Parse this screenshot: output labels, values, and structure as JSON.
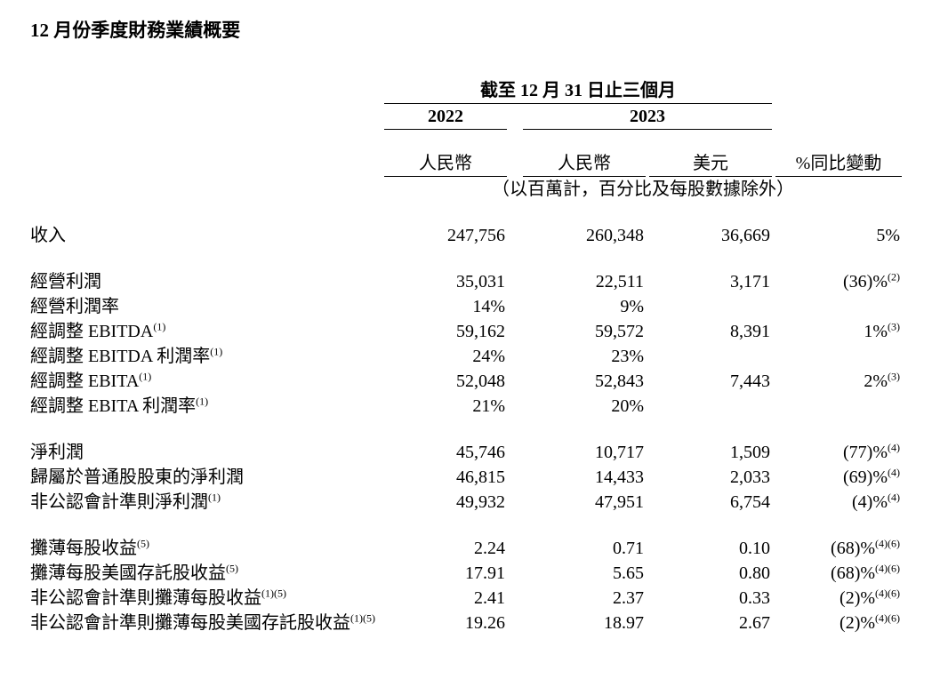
{
  "title": "12 月份季度財務業績概要",
  "header": {
    "period": "截至 12 月 31 日止三個月",
    "year_2022": "2022",
    "year_2023": "2023",
    "ccy_rmb": "人民幣",
    "ccy_usd": "美元",
    "pct_label": "%同比變動",
    "unit_note": "（以百萬計，百分比及每股數據除外）"
  },
  "rows": {
    "revenue": {
      "label": "收入",
      "c1": "247,756",
      "c2": "260,348",
      "c3": "36,669",
      "pct": "5%",
      "fn": ""
    },
    "op_income": {
      "label": "經營利潤",
      "c1": "35,031",
      "c2": "22,511",
      "c3": "3,171",
      "pct": "(36)%",
      "fn": "(2)"
    },
    "op_margin": {
      "label": "經營利潤率",
      "c1": "14%",
      "c2": "9%",
      "c3": "",
      "pct": "",
      "fn": ""
    },
    "adj_ebitda": {
      "label": "經調整 EBITDA",
      "sup": "(1)",
      "c1": "59,162",
      "c2": "59,572",
      "c3": "8,391",
      "pct": "1%",
      "fn": "(3)"
    },
    "adj_ebitda_m": {
      "label": "經調整 EBITDA 利潤率",
      "sup": "(1)",
      "c1": "24%",
      "c2": "23%",
      "c3": "",
      "pct": "",
      "fn": ""
    },
    "adj_ebita": {
      "label": "經調整 EBITA",
      "sup": "(1)",
      "c1": "52,048",
      "c2": "52,843",
      "c3": "7,443",
      "pct": "2%",
      "fn": "(3)"
    },
    "adj_ebita_m": {
      "label": "經調整 EBITA 利潤率",
      "sup": "(1)",
      "c1": "21%",
      "c2": "20%",
      "c3": "",
      "pct": "",
      "fn": ""
    },
    "net_income": {
      "label": "淨利潤",
      "c1": "45,746",
      "c2": "10,717",
      "c3": "1,509",
      "pct": "(77)%",
      "fn": "(4)"
    },
    "ni_common": {
      "label": "歸屬於普通股股東的淨利潤",
      "c1": "46,815",
      "c2": "14,433",
      "c3": "2,033",
      "pct": "(69)%",
      "fn": "(4)"
    },
    "nongaap_ni": {
      "label": "非公認會計準則淨利潤",
      "sup": "(1)",
      "c1": "49,932",
      "c2": "47,951",
      "c3": "6,754",
      "pct": "(4)%",
      "fn": "(4)"
    },
    "deps": {
      "label": "攤薄每股收益",
      "sup": "(5)",
      "c1": "2.24",
      "c2": "0.71",
      "c3": "0.10",
      "pct": "(68)%",
      "fn": "(4)(6)"
    },
    "dadsp": {
      "label": "攤薄每股美國存託股收益",
      "sup": "(5)",
      "c1": "17.91",
      "c2": "5.65",
      "c3": "0.80",
      "pct": "(68)%",
      "fn": "(4)(6)"
    },
    "nongaap_deps": {
      "label": "非公認會計準則攤薄每股收益",
      "sup": "(1)(5)",
      "c1": "2.41",
      "c2": "2.37",
      "c3": "0.33",
      "pct": "(2)%",
      "fn": "(4)(6)"
    },
    "nongaap_dadsp": {
      "label": "非公認會計準則攤薄每股美國存託股收益",
      "sup": "(1)(5)",
      "c1": "19.26",
      "c2": "18.97",
      "c3": "2.67",
      "pct": "(2)%",
      "fn": "(4)(6)"
    }
  }
}
